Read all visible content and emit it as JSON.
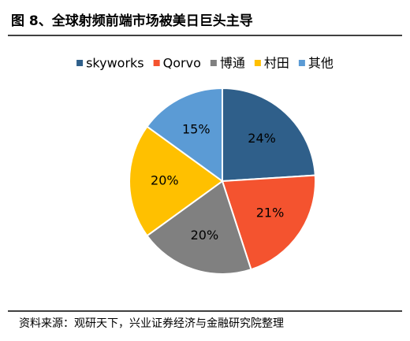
{
  "chart_data": {
    "type": "pie",
    "title": "图 8、全球射频前端市场被美日巨头主导",
    "categories": [
      "skyworks",
      "Qorvo",
      "博通",
      "村田",
      "其他"
    ],
    "values": [
      24,
      21,
      20,
      20,
      15
    ],
    "value_labels": [
      "24%",
      "21%",
      "20%",
      "20%",
      "15%"
    ],
    "colors": [
      "#2f5f8a",
      "#f4532f",
      "#808080",
      "#ffc000",
      "#5b9bd5"
    ],
    "legend": "top",
    "source": "资料来源：观研天下，兴业证券经济与金融研究院整理"
  }
}
